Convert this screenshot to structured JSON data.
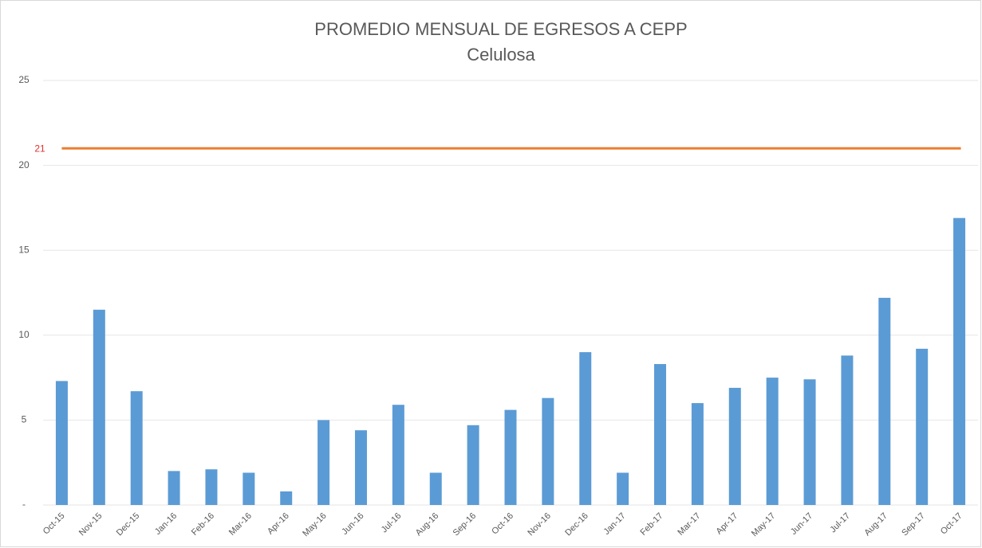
{
  "chart_data": {
    "type": "bar",
    "title": "PROMEDIO MENSUAL DE EGRESOS A CEPP",
    "subtitle": "Celulosa",
    "categories": [
      "Oct-15",
      "Nov-15",
      "Dec-15",
      "Jan-16",
      "Feb-16",
      "Mar-16",
      "Apr-16",
      "May-16",
      "Jun-16",
      "Jul-16",
      "Aug-16",
      "Sep-16",
      "Oct-16",
      "Nov-16",
      "Dec-16",
      "Jan-17",
      "Feb-17",
      "Mar-17",
      "Apr-17",
      "May-17",
      "Jun-17",
      "Jul-17",
      "Aug-17",
      "Sep-17",
      "Oct-17"
    ],
    "values": [
      7.3,
      11.5,
      6.7,
      2.0,
      2.1,
      1.9,
      0.8,
      5.0,
      4.4,
      5.9,
      1.9,
      4.7,
      5.6,
      6.3,
      9.0,
      1.9,
      8.3,
      6.0,
      6.9,
      7.5,
      7.4,
      8.8,
      12.2,
      9.2,
      16.9
    ],
    "color": "#5b9bd5",
    "reference_line": {
      "value": 21,
      "color": "#ed7d31",
      "label_color": "#e03030"
    },
    "ylim": [
      0,
      25
    ],
    "yticks": [
      {
        "value": 0,
        "label": "-"
      },
      5,
      10,
      15,
      20,
      25
    ],
    "grid": true
  }
}
